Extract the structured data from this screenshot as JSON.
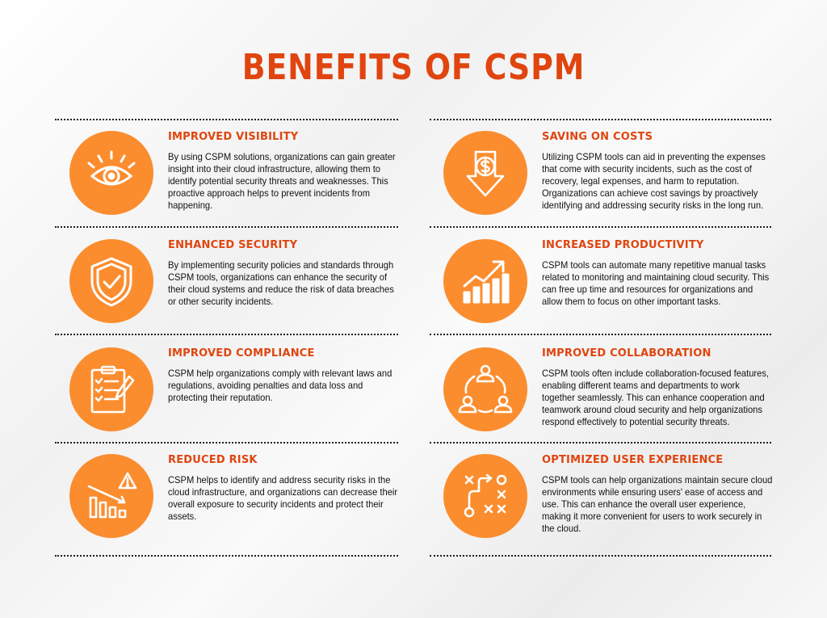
{
  "title": "BENEFITS OF CSPM",
  "accent_color": "#e0450f",
  "icon_color": "#fb8d2f",
  "left": [
    {
      "heading": "IMPROVED VISIBILITY",
      "body": "By using CSPM solutions, organizations can gain greater insight into their cloud infrastructure, allowing them to identify potential security threats and weaknesses. This proactive approach helps to prevent incidents from happening.",
      "icon": "eye-icon"
    },
    {
      "heading": "ENHANCED SECURITY",
      "body": "By implementing security policies and standards through CSPM tools, organizations can enhance the security of their cloud systems and reduce the risk of data breaches or other security incidents.",
      "icon": "shield-check-icon"
    },
    {
      "heading": "IMPROVED COMPLIANCE",
      "body": "CSPM help organizations comply with relevant laws and regulations, avoiding penalties and data loss and protecting their reputation.",
      "icon": "checklist-icon"
    },
    {
      "heading": "REDUCED RISK",
      "body": "CSPM helps to identify and address security risks in the cloud infrastructure, and organizations can decrease their overall exposure to security incidents and protect their assets.",
      "icon": "declining-chart-warning-icon"
    }
  ],
  "right": [
    {
      "heading": "SAVING ON COSTS",
      "body": "Utilizing CSPM tools can aid in preventing the expenses that come with security incidents, such as the cost of recovery, legal expenses, and harm to reputation. Organizations can achieve cost savings by proactively identifying and addressing security risks in the long run.",
      "icon": "dollar-down-arrow-icon"
    },
    {
      "heading": "INCREASED PRODUCTIVITY",
      "body": "CSPM tools can automate many repetitive manual tasks related to monitoring and maintaining cloud security. This can free up time and resources for organizations and allow them to focus on other important tasks.",
      "icon": "growth-chart-icon"
    },
    {
      "heading": "IMPROVED COLLABORATION",
      "body": "CSPM tools often include collaboration-focused features, enabling different teams and departments to work together seamlessly. This can enhance cooperation and teamwork around cloud security and help organizations respond effectively to potential security threats.",
      "icon": "team-cycle-icon"
    },
    {
      "heading": "OPTIMIZED USER EXPERIENCE",
      "body": "CSPM tools can help organizations maintain secure cloud environments while ensuring users' ease of access and use. This can enhance the overall user experience, making it more convenient for users to work securely in the cloud.",
      "icon": "strategy-path-icon"
    }
  ]
}
